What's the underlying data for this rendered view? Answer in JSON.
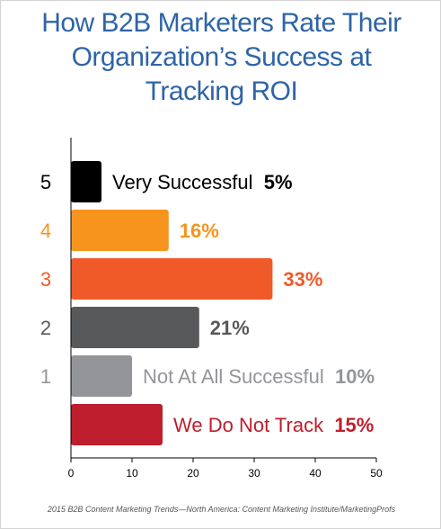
{
  "title_lines": [
    "How B2B Marketers Rate Their",
    "Organization’s Success at",
    "Tracking ROI"
  ],
  "source": "2015 B2B Content Marketing Trends—North America: Content Marketing Institute/MarketingProfs",
  "chart_data": {
    "type": "bar",
    "orientation": "horizontal",
    "title": "How B2B Marketers Rate Their Organization’s Success at Tracking ROI",
    "xlim": [
      0,
      50
    ],
    "xticks": [
      0,
      10,
      20,
      30,
      40,
      50
    ],
    "grid": false,
    "categories": [
      "5",
      "4",
      "3",
      "2",
      "1",
      ""
    ],
    "values": [
      5,
      16,
      33,
      21,
      10,
      15
    ],
    "value_labels": [
      "5%",
      "16%",
      "33%",
      "21%",
      "10%",
      "15%"
    ],
    "descriptors": [
      "Very Successful",
      "",
      "",
      "",
      "Not At All Successful",
      "We Do Not Track"
    ],
    "colors": [
      "#000000",
      "#f7941d",
      "#f05a28",
      "#58595b",
      "#939598",
      "#be1e2d"
    ],
    "label_colors": [
      "#000000",
      "#f7941d",
      "#f05a28",
      "#58595b",
      "#939598",
      "#be1e2d"
    ]
  }
}
